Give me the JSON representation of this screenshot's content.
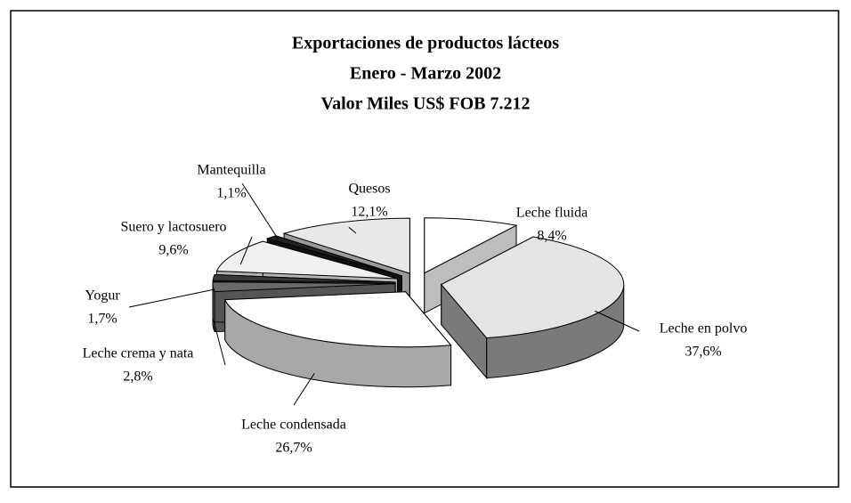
{
  "chart_data": {
    "type": "pie3d",
    "title": [
      "Exportaciones de productos lácteos",
      "Enero - Marzo 2002",
      "Valor Miles US$ FOB 7.212"
    ],
    "categories": [
      "Leche fluida",
      "Leche en polvo",
      "Leche condensada",
      "Leche crema y nata",
      "Yogur",
      "Suero y lactosuero",
      "Mantequilla",
      "Quesos"
    ],
    "values": [
      8.4,
      37.6,
      26.7,
      2.8,
      1.7,
      9.6,
      1.1,
      12.1
    ],
    "value_labels": [
      "8,4%",
      "37,6%",
      "26,7%",
      "2,8%",
      "1,7%",
      "9,6%",
      "1,1%",
      "12,1%"
    ],
    "colors": [
      "#ffffff",
      "#e4e4e4",
      "#ffffff",
      "#6a6a6a",
      "#3a3a3a",
      "#f0f0f0",
      "#222222",
      "#e8e8e8"
    ],
    "side_colors": [
      "#bdbdbd",
      "#7a7a7a",
      "#a8a8a8",
      "#555555",
      "#2a2a2a",
      "#b5b5b5",
      "#111111",
      "#9a9a9a"
    ]
  }
}
